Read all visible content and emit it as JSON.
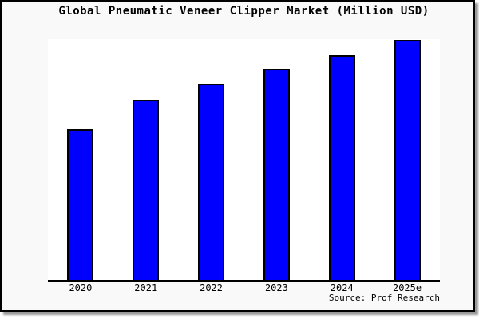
{
  "chart_data": {
    "type": "bar",
    "title": "Global Pneumatic Veneer Clipper Market (Million USD)",
    "categories": [
      "2020",
      "2021",
      "2022",
      "2023",
      "2024",
      "2025e"
    ],
    "values": [
      62.7,
      74.7,
      81.5,
      87.6,
      93.5,
      99.8
    ],
    "value_note": "y-axis has no tick labels; values estimated as percent of plot height",
    "xlabel": "",
    "ylabel": "",
    "ylim": [
      0,
      100
    ],
    "grid": "off",
    "legend": "none",
    "bar_color": "#0000ff",
    "bar_border_color": "#000000",
    "source_text": "Source: Prof Research"
  },
  "theme": {
    "figure_background": "#f9f9f9",
    "plot_background": "#ffffff",
    "frame_border_color": "#000000",
    "shadow_color": "#9a9a9a",
    "text_color": "#000000"
  }
}
